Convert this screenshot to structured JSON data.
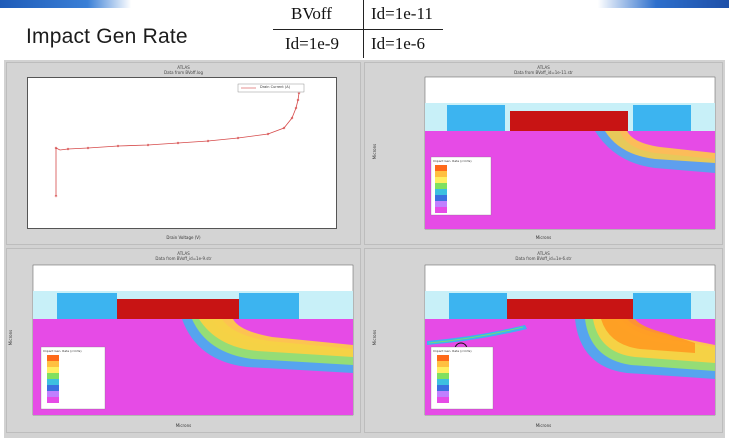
{
  "slide": {
    "title": "Impact Gen Rate"
  },
  "legend_table": {
    "rows": [
      [
        "BVoff",
        "Id=1e-11"
      ],
      [
        "Id=1e-9",
        "Id=1e-6"
      ]
    ]
  },
  "panels": [
    {
      "id": "iv",
      "header_line1": "ATLAS",
      "header_line2": "Data from BVoff.log",
      "xlabel": "Drain Voltage (V)",
      "legend": "Drain Current (A)"
    },
    {
      "id": "id11",
      "header_line1": "ATLAS",
      "header_line2": "Data from BVoff_id=1e-11.str",
      "xlabel": "Microns",
      "ylabel": "Microns",
      "legend": "Impact Gen. Rate (/cm3s)"
    },
    {
      "id": "id9",
      "header_line1": "ATLAS",
      "header_line2": "Data from BVoff_id=1e-9.str",
      "xlabel": "Microns",
      "ylabel": "Microns",
      "legend": "Impact Gen. Rate (/cm3s)"
    },
    {
      "id": "id6",
      "header_line1": "ATLAS",
      "header_line2": "Data from BVoff_id=1e-6.str",
      "xlabel": "Microns",
      "ylabel": "Microns",
      "legend": "Impact Gen. Rate (/cm3s)"
    }
  ],
  "colors": {
    "substrate": "#e64be6",
    "gate": "#c81414",
    "contacts": "#3cb4f0",
    "oxide": "#c8f0f8"
  }
}
